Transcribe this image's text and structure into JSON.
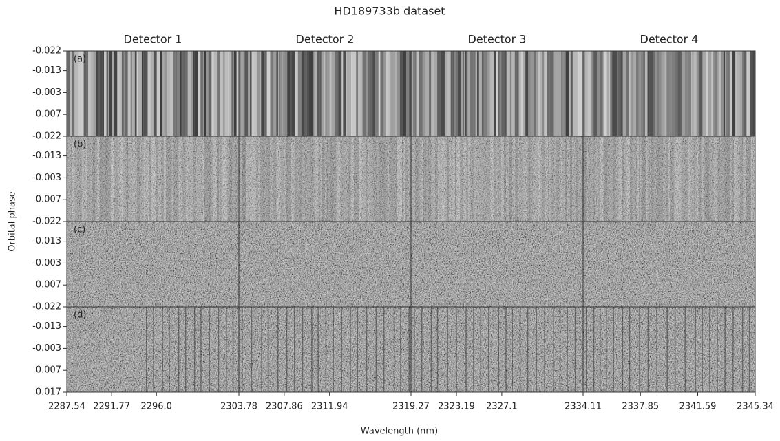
{
  "chart_data": {
    "type": "image",
    "title": "HD189733b dataset",
    "xlabel": "Wavelength (nm)",
    "ylabel": "Orbital phase",
    "ylim": [
      -0.022,
      0.017
    ],
    "columns": [
      {
        "title": "Detector 1",
        "xlim": [
          2287.54,
          2303.78
        ],
        "xticks": [
          2287.54,
          2291.77,
          {
            "value": 2296,
            "label": "2296.0"
          }
        ]
      },
      {
        "title": "Detector 2",
        "xlim": [
          2303.78,
          2319.27
        ],
        "xticks": [
          2303.78,
          2307.86,
          2311.94
        ]
      },
      {
        "title": "Detector 3",
        "xlim": [
          2319.27,
          2334.11
        ],
        "xticks": [
          2319.27,
          2323.19,
          2327.1
        ]
      },
      {
        "title": "Detector 4",
        "xlim": [
          2334.11,
          2345.34
        ],
        "xticks": [
          2334.11,
          2337.85,
          2341.59,
          2345.34
        ]
      }
    ],
    "rows": [
      {
        "label": "(a)",
        "yticks": [
          -0.022,
          -0.013,
          -0.003,
          0.007
        ]
      },
      {
        "label": "(b)",
        "yticks": [
          -0.022,
          -0.013,
          -0.003,
          0.007
        ]
      },
      {
        "label": "(c)",
        "yticks": [
          -0.022,
          -0.013,
          -0.003,
          0.007
        ]
      },
      {
        "label": "(d)",
        "yticks": [
          -0.022,
          -0.013,
          -0.003,
          0.007,
          0.017
        ]
      }
    ]
  }
}
